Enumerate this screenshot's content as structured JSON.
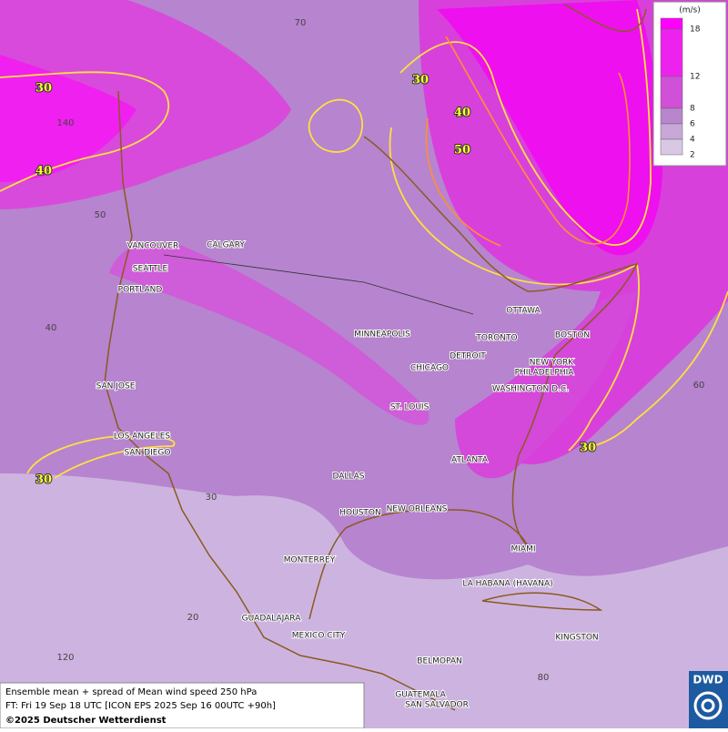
{
  "legend": {
    "unit": "(m/s)",
    "levels": [
      "18",
      "12",
      "8",
      "6",
      "4",
      "2"
    ]
  },
  "contour_labels": [
    "30",
    "30",
    "40",
    "40",
    "50",
    "30",
    "30"
  ],
  "grid_labels": [
    "70",
    "140",
    "50",
    "40",
    "30",
    "20",
    "120",
    "60",
    "80"
  ],
  "cities": [
    "VANCOUVER",
    "CALGARY",
    "SEATTLE",
    "PORTLAND",
    "MINNEAPOLIS",
    "TORONTO",
    "OTTAWA",
    "BOSTON",
    "DETROIT",
    "NEW YORK",
    "PHILADELPHIA",
    "CHICAGO",
    "WASHINGTON D.C.",
    "SAN JOSE",
    "ST. LOUIS",
    "LOS ANGELES",
    "SAN DIEGO",
    "ATLANTA",
    "DALLAS",
    "HOUSTON",
    "NEW ORLEANS",
    "MIAMI",
    "MONTERREY",
    "LA HABANA (HAVANA)",
    "GUADALAJARA",
    "MEXICO CITY",
    "KINGSTON",
    "BELMOPAN",
    "GUATEMALA",
    "SAN SALVADOR"
  ],
  "footer": {
    "line1": "Ensemble mean + spread of Mean wind speed 250 hPa",
    "line2": "FT: Fri 19 Sep 18 UTC [ICON EPS 2025 Sep 16 00UTC +90h]",
    "line3": "©2025 Deutscher Wetterdienst"
  },
  "logo": "DWD"
}
